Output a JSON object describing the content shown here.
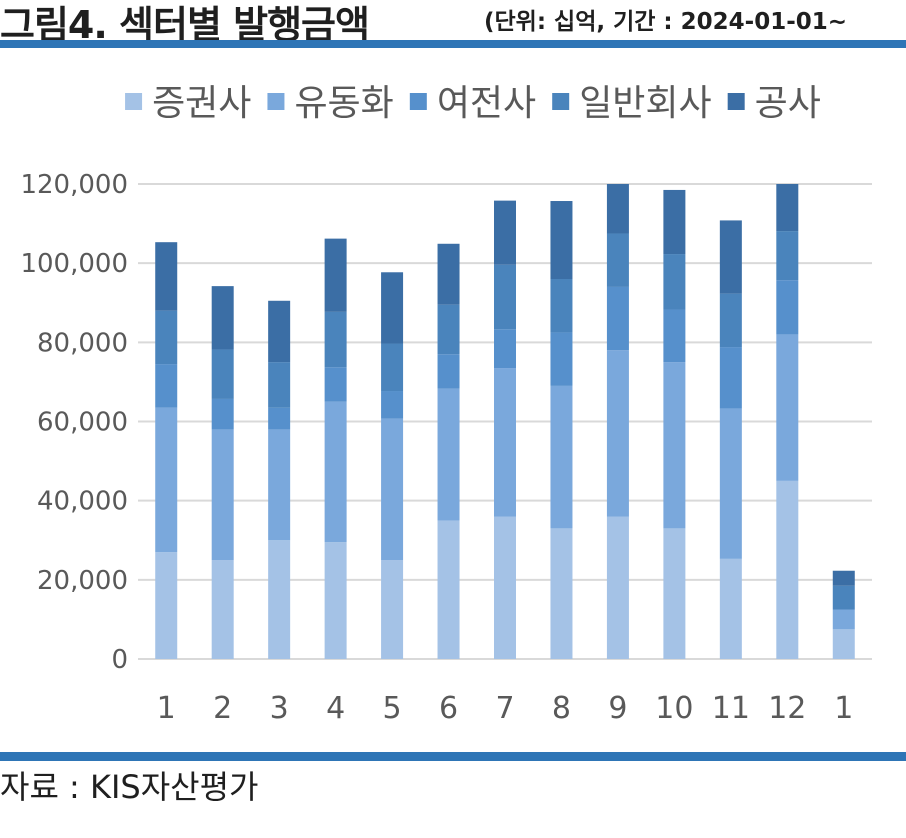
{
  "header": {
    "title": "그림4. 섹터별 발행금액",
    "subtitle": "(단위: 십억, 기간 : 2024-01-01~"
  },
  "footer": {
    "source": "자료 : KIS자산평가"
  },
  "colors": {
    "accent_rule": "#2e75b6",
    "series": [
      "#a4c2e6",
      "#7aa8dc",
      "#5690cc",
      "#4a84bc",
      "#3b6ea5"
    ],
    "grid": "#d9d9d9",
    "text": "#595959"
  },
  "chart_data": {
    "type": "bar",
    "stacked": true,
    "categories": [
      "1",
      "2",
      "3",
      "4",
      "5",
      "6",
      "7",
      "8",
      "9",
      "10",
      "11",
      "12",
      "1"
    ],
    "series": [
      {
        "name": "증권사",
        "values": [
          27000,
          25000,
          30000,
          29500,
          25000,
          35000,
          36000,
          33000,
          36000,
          33000,
          25300,
          45000,
          7500
        ]
      },
      {
        "name": "유동화",
        "values": [
          36500,
          33000,
          28000,
          35500,
          35700,
          33300,
          37500,
          36000,
          42000,
          42000,
          38000,
          37000,
          5000
        ]
      },
      {
        "name": "여전사",
        "values": [
          11000,
          7700,
          5500,
          8700,
          7000,
          8700,
          9800,
          13500,
          16000,
          13300,
          15500,
          13700,
          0
        ]
      },
      {
        "name": "일반회사",
        "values": [
          13500,
          12500,
          11500,
          14000,
          12000,
          12500,
          16300,
          13500,
          13500,
          14000,
          13500,
          12400,
          6000
        ]
      },
      {
        "name": "공사",
        "values": [
          17300,
          16000,
          15500,
          18500,
          18000,
          15400,
          16200,
          19700,
          12500,
          16200,
          18500,
          12000,
          3800
        ]
      }
    ],
    "yticks": [
      "0",
      "20,000",
      "40,000",
      "60,000",
      "80,000",
      "100,000",
      "120,000"
    ],
    "ylim": [
      0,
      120000
    ],
    "grid": true,
    "legend": "top"
  }
}
